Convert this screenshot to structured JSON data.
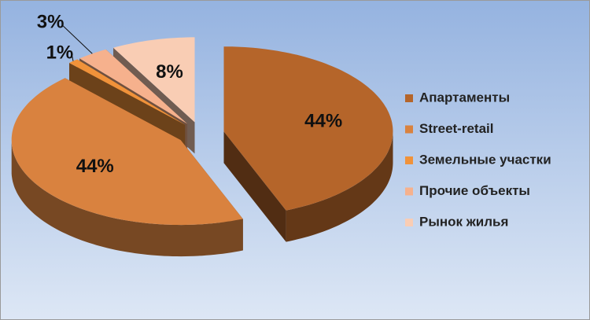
{
  "chart_data": {
    "type": "pie",
    "categories": [
      "Апартаменты",
      "Street-retail",
      "Земельные участки",
      "Прочие объекты",
      "Рынок жилья"
    ],
    "values": [
      44,
      44,
      1,
      3,
      8
    ],
    "value_labels": [
      "44%",
      "44%",
      "1%",
      "3%",
      "8%"
    ],
    "colors": [
      "#b5652a",
      "#d9823f",
      "#f0923a",
      "#f6b18d",
      "#f9cdb4"
    ],
    "legend": "right"
  }
}
